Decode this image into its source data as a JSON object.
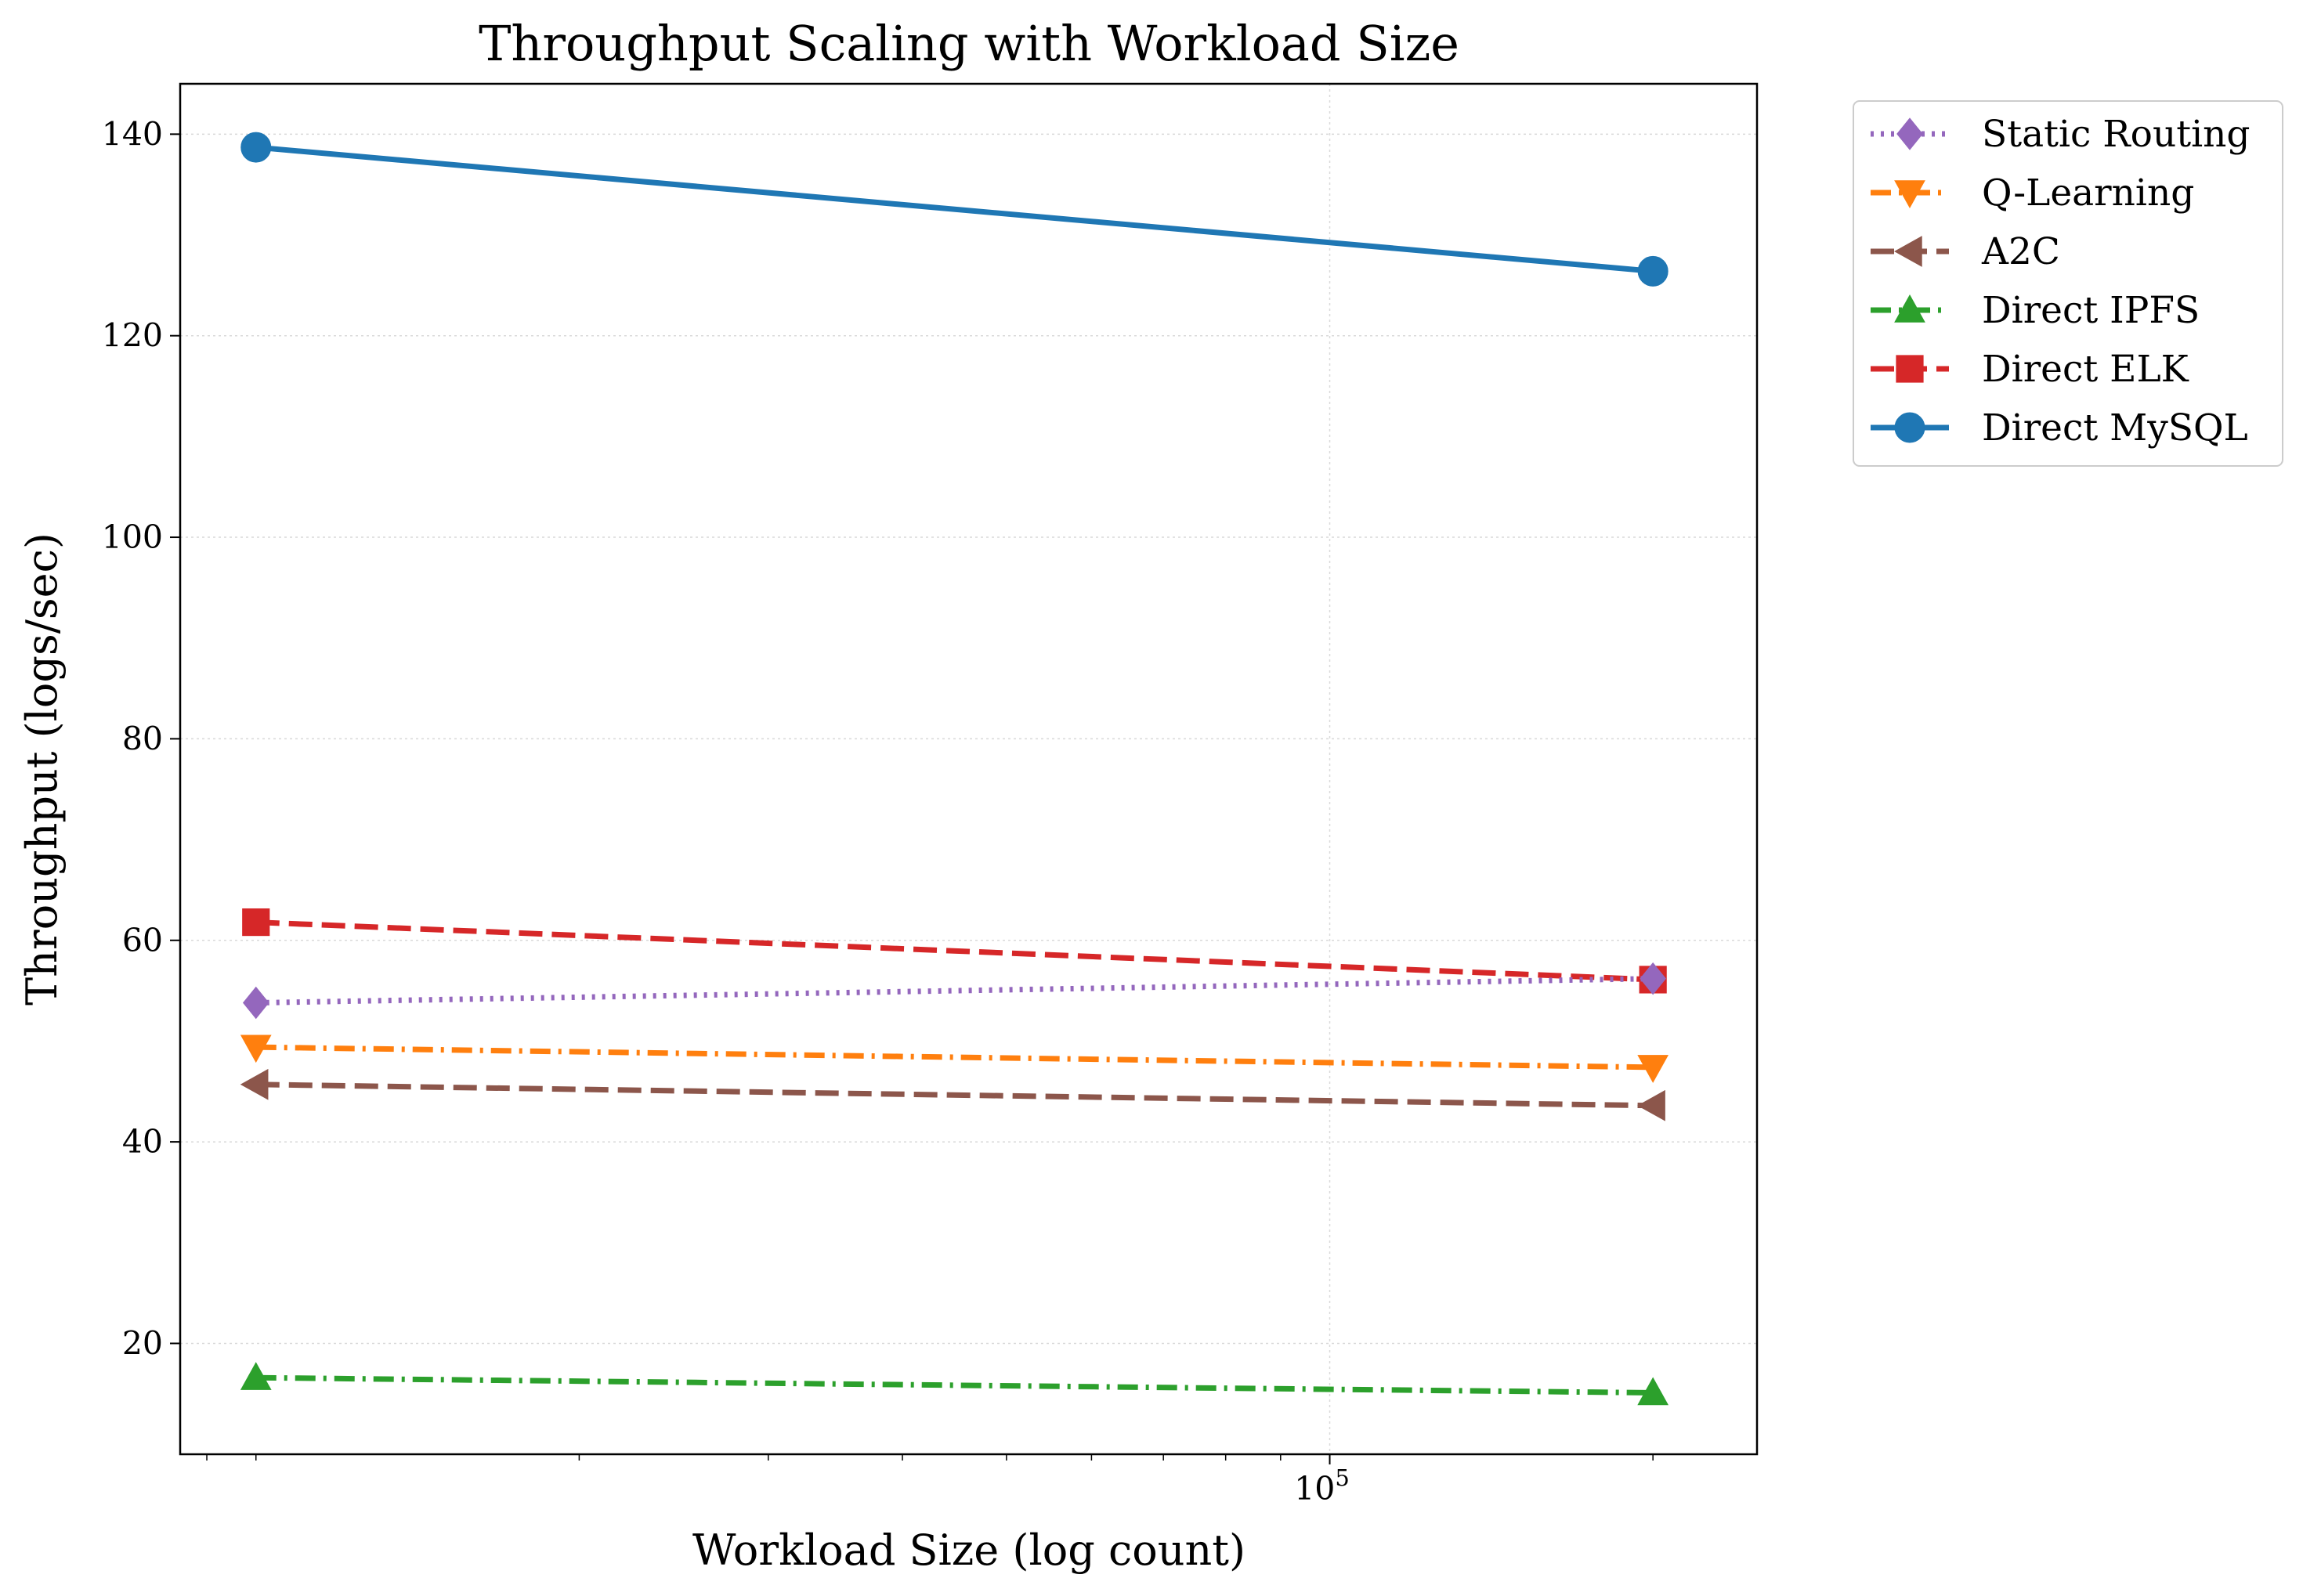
{
  "chart_data": {
    "type": "line",
    "title": "Throughput Scaling with Workload Size",
    "xlabel": "Workload Size (log count)",
    "ylabel": "Throughput (logs/sec)",
    "xscale": "log",
    "xlim": [
      8500,
      250000
    ],
    "ylim": [
      9,
      145
    ],
    "x": [
      10000,
      200000
    ],
    "x_tick_labels": [
      {
        "value": 100000,
        "base": "10",
        "exp": "5"
      }
    ],
    "y_ticks": [
      20,
      40,
      60,
      80,
      100,
      120,
      140
    ],
    "grid": true,
    "legend_position": "outside-top-right",
    "series": [
      {
        "name": "Static Routing",
        "values": [
          53.8,
          56.2
        ],
        "color": "#9467bd",
        "marker": "diamond",
        "line_style": "dotted"
      },
      {
        "name": "Q-Learning",
        "values": [
          49.4,
          47.4
        ],
        "color": "#ff7f0e",
        "marker": "triangle-down",
        "line_style": "dashdot"
      },
      {
        "name": "A2C",
        "values": [
          45.7,
          43.6
        ],
        "color": "#8c564b",
        "marker": "triangle-left",
        "line_style": "dashed"
      },
      {
        "name": "Direct IPFS",
        "values": [
          16.6,
          15.1
        ],
        "color": "#2ca02c",
        "marker": "triangle-up",
        "line_style": "dashdot"
      },
      {
        "name": "Direct ELK",
        "values": [
          61.8,
          56.1
        ],
        "color": "#d62728",
        "marker": "square",
        "line_style": "dashed"
      },
      {
        "name": "Direct MySQL",
        "values": [
          138.7,
          126.4
        ],
        "color": "#1f77b4",
        "marker": "circle",
        "line_style": "solid"
      }
    ]
  }
}
